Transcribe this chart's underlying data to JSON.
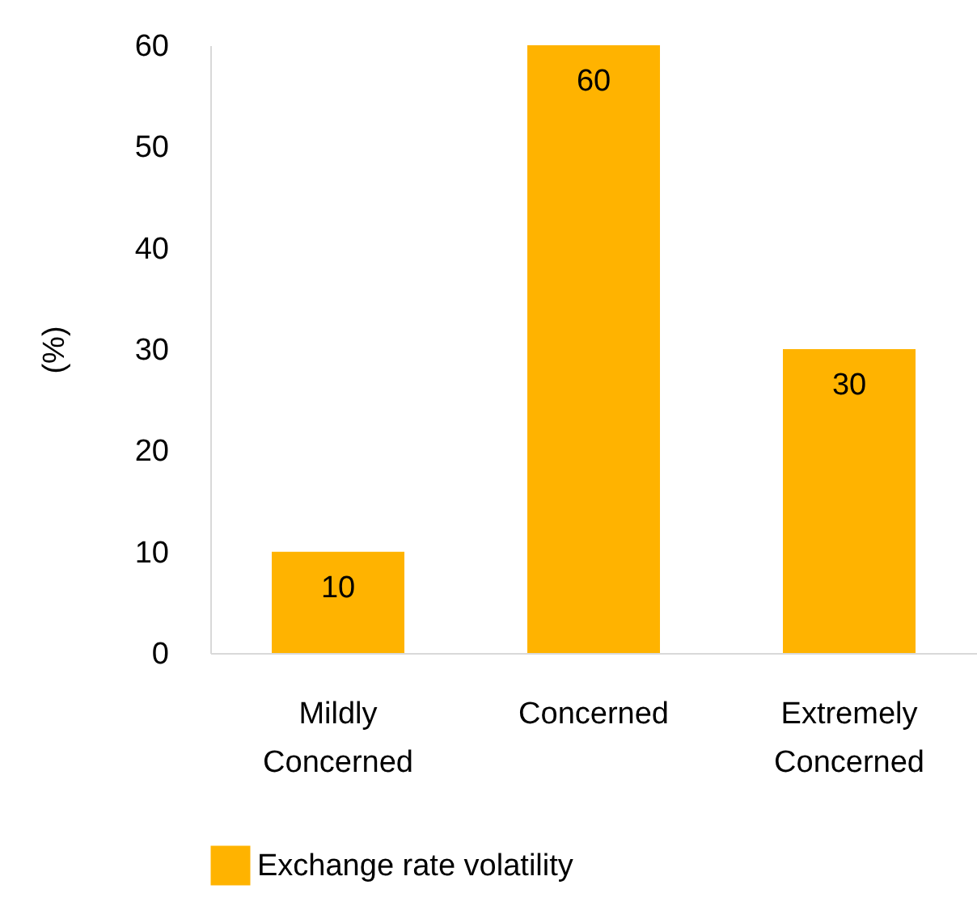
{
  "chart_data": {
    "type": "bar",
    "ylabel": "(%)",
    "categories": [
      "Mildly Concerned",
      "Concerned",
      "Extremely Concerned"
    ],
    "series": [
      {
        "name": "Exchange rate volatility",
        "color": "#ffb300",
        "values": [
          10,
          60,
          30
        ]
      }
    ],
    "ylim": [
      0,
      60
    ],
    "yticks": [
      0,
      10,
      20,
      30,
      40,
      50,
      60
    ],
    "grid": false,
    "legend": "bottom",
    "data_labels": true
  }
}
